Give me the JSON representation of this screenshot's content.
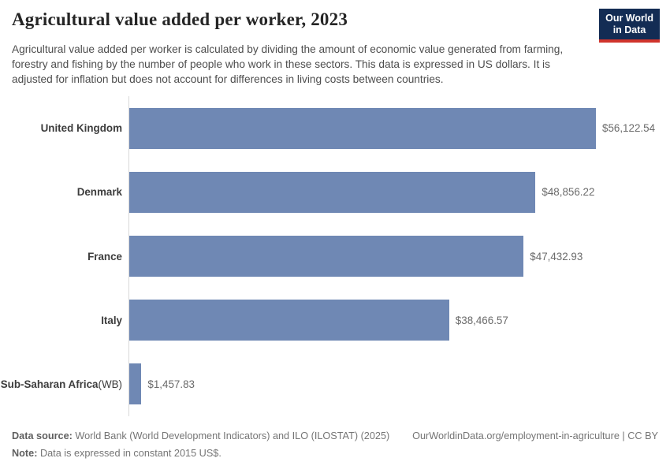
{
  "header": {
    "title": "Agricultural value added per worker, 2023",
    "subtitle": "Agricultural value added per worker is calculated by dividing the amount of economic value generated from farming, forestry and fishing by the number of people who work in these sectors. This data is expressed in US dollars. It is adjusted for inflation but does not account for differences in living costs between countries."
  },
  "logo": {
    "line1": "Our World",
    "line2": "in Data",
    "bg_color": "#132c54",
    "accent_color": "#d0342c"
  },
  "chart_data": {
    "type": "bar",
    "orientation": "horizontal",
    "title": "Agricultural value added per worker, 2023",
    "categories": [
      "United Kingdom",
      "Denmark",
      "France",
      "Italy",
      "Sub-Saharan Africa (WB)"
    ],
    "label_bold_parts": [
      "United Kingdom",
      "Denmark",
      "France",
      "Italy",
      "Sub-Saharan Africa"
    ],
    "label_suffixes": [
      "",
      "",
      "",
      "",
      " (WB)"
    ],
    "values": [
      56122.54,
      48856.22,
      47432.93,
      38466.57,
      1457.83
    ],
    "value_labels": [
      "$56,122.54",
      "$48,856.22",
      "$47,432.93",
      "$38,466.57",
      "$1,457.83"
    ],
    "xlim": [
      0,
      56122.54
    ],
    "bar_color": "#6f88b4",
    "axis_line_color": "#d9d9d9",
    "grid": false,
    "legend": null
  },
  "footer": {
    "data_source_label": "Data source:",
    "data_source_text": " World Bank (World Development Indicators) and ILO (ILOSTAT) (2025)",
    "link_text": "OurWorldinData.org/employment-in-agriculture | CC BY",
    "note_label": "Note:",
    "note_text": " Data is expressed in constant 2015 US$."
  }
}
